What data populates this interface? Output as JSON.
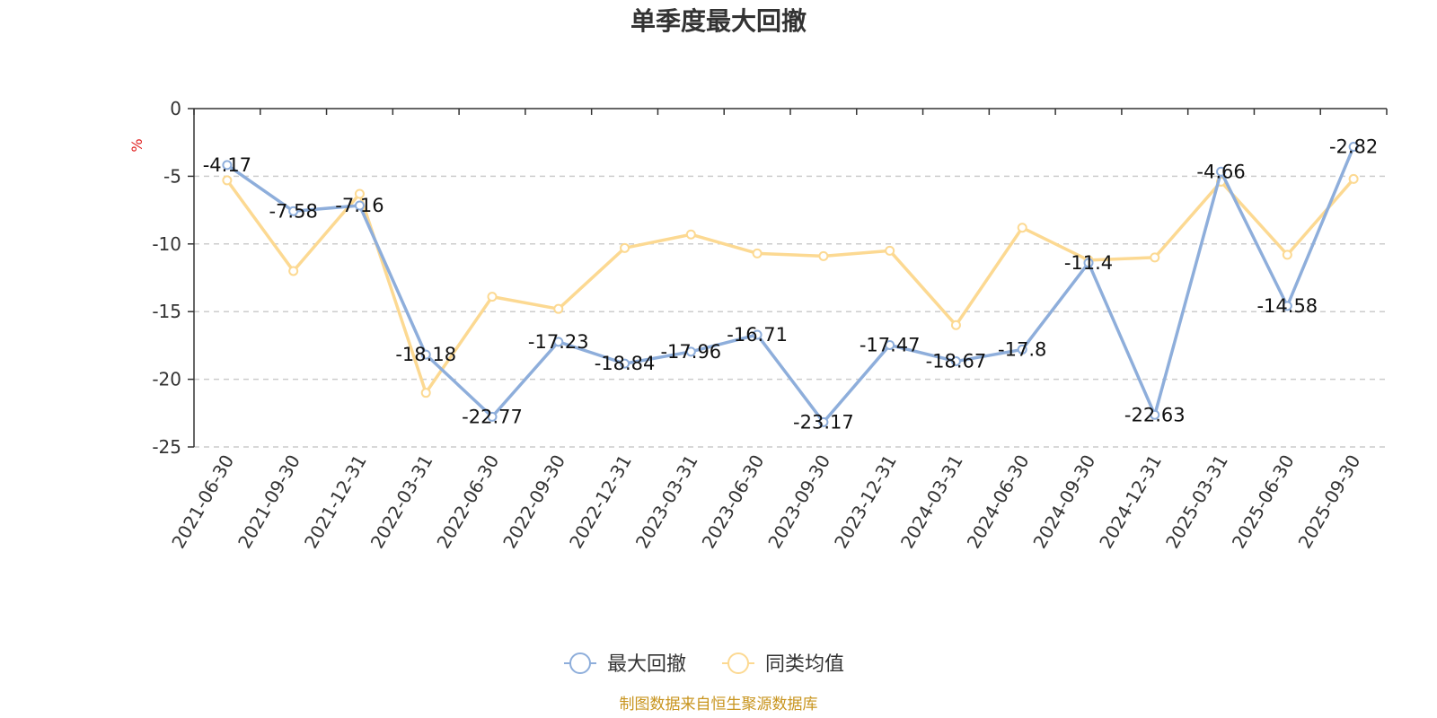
{
  "chart_data": {
    "type": "line",
    "title": "单季度最大回撤",
    "unit": "%",
    "categories": [
      "2021-06-30",
      "2021-09-30",
      "2021-12-31",
      "2022-03-31",
      "2022-06-30",
      "2022-09-30",
      "2022-12-31",
      "2023-03-31",
      "2023-06-30",
      "2023-09-30",
      "2023-12-31",
      "2024-03-31",
      "2024-06-30",
      "2024-09-30",
      "2024-12-31",
      "2025-03-31",
      "2025-06-30",
      "2025-09-30"
    ],
    "ylim": [
      -25,
      0
    ],
    "yticks": [
      0,
      -5,
      -10,
      -15,
      -20,
      -25
    ],
    "grid": "horizontal dashed",
    "legend_position": "bottom-center",
    "series": [
      {
        "name": "最大回撤",
        "color": "#8eaedb",
        "show_labels": true,
        "values": [
          -4.17,
          -7.58,
          -7.16,
          -18.18,
          -22.77,
          -17.23,
          -18.84,
          -17.96,
          -16.71,
          -23.17,
          -17.47,
          -18.67,
          -17.8,
          -11.4,
          -22.63,
          -4.66,
          -14.58,
          -2.82
        ]
      },
      {
        "name": "同类均值",
        "color": "#fcd992",
        "show_labels": false,
        "values": [
          -5.3,
          -12.0,
          -6.3,
          -21.0,
          -13.9,
          -14.8,
          -10.3,
          -9.3,
          -10.7,
          -10.9,
          -10.5,
          -16.0,
          -8.8,
          -11.2,
          -11.0,
          -5.4,
          -10.8,
          -5.2
        ]
      }
    ],
    "source": "制图数据来自恒生聚源数据库"
  }
}
